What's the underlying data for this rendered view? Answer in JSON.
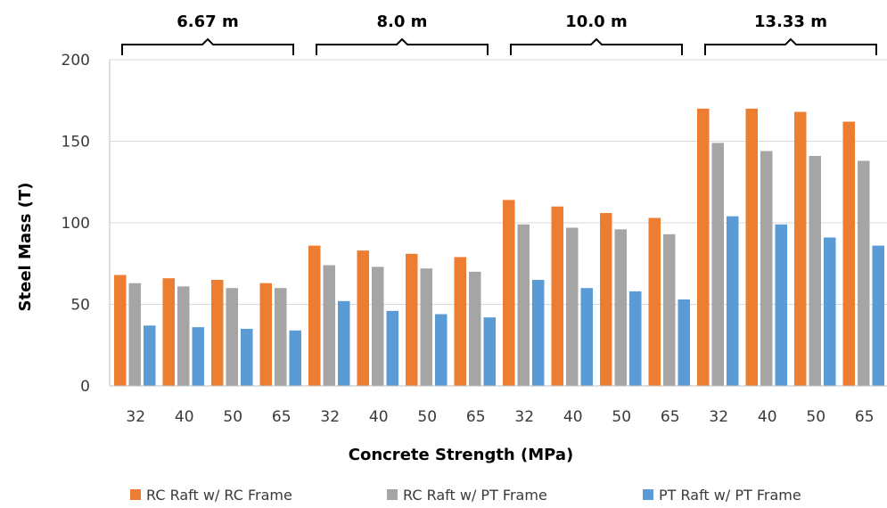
{
  "chart_data": {
    "type": "bar",
    "title": "",
    "xlabel": "Concrete Strength (MPa)",
    "ylabel": "Steel Mass (T)",
    "ylim": [
      0,
      200
    ],
    "yticks": [
      0,
      50,
      100,
      150,
      200
    ],
    "grid": true,
    "legend_position": "bottom",
    "groups": [
      "6.67 m",
      "8.0 m",
      "10.0 m",
      "13.33 m"
    ],
    "categories": [
      "32",
      "40",
      "50",
      "65",
      "32",
      "40",
      "50",
      "65",
      "32",
      "40",
      "50",
      "65",
      "32",
      "40",
      "50",
      "65"
    ],
    "series": [
      {
        "name": "RC Raft w/ RC Frame",
        "color": "#ed7d31",
        "values": [
          68,
          66,
          65,
          63,
          86,
          83,
          81,
          79,
          114,
          110,
          106,
          103,
          170,
          170,
          168,
          162
        ]
      },
      {
        "name": "RC Raft w/ PT Frame",
        "color": "#a5a5a5",
        "values": [
          63,
          61,
          60,
          60,
          74,
          73,
          72,
          70,
          99,
          97,
          96,
          93,
          149,
          144,
          141,
          138
        ]
      },
      {
        "name": "PT Raft w/ PT Frame",
        "color": "#5b9bd5",
        "values": [
          37,
          36,
          35,
          34,
          52,
          46,
          44,
          42,
          65,
          60,
          58,
          53,
          104,
          99,
          91,
          86
        ]
      }
    ]
  }
}
